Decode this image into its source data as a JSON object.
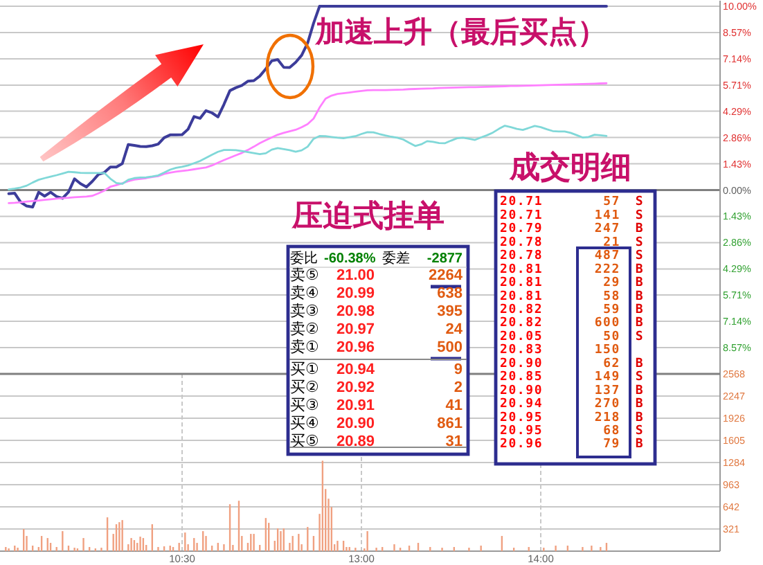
{
  "chart_data": [
    {
      "type": "line",
      "categories": [
        null,
        null,
        null,
        null,
        null,
        null,
        null,
        null,
        null,
        null,
        null,
        null,
        null,
        null,
        null,
        null,
        null,
        null,
        null,
        null,
        null,
        null,
        null,
        null,
        null,
        null,
        null,
        null,
        null,
        null,
        null,
        null,
        null,
        null,
        null,
        null,
        null,
        null,
        null,
        null,
        null,
        null,
        null,
        null,
        null,
        null,
        null,
        null,
        null,
        null,
        null,
        null,
        null,
        null,
        null,
        null,
        null,
        null,
        null,
        null,
        null,
        null,
        null,
        null,
        null,
        null,
        null,
        null,
        null,
        null,
        null,
        null,
        null,
        null,
        null,
        null,
        null,
        null,
        null,
        null,
        null,
        null,
        null,
        null,
        null,
        null,
        null,
        null,
        null,
        null,
        null,
        null,
        null,
        null,
        null,
        null,
        null,
        null,
        null,
        null,
        null,
        null,
        null,
        null,
        null,
        null,
        null,
        null,
        null,
        null,
        null,
        null,
        null,
        null,
        null,
        null,
        null,
        null,
        null,
        null,
        null
      ],
      "ylim": [
        -10,
        10
      ],
      "yticks": [
        {
          "value": 10,
          "label": "10.00%"
        },
        {
          "value": 8.57,
          "label": "8.57%"
        },
        {
          "value": 7.14,
          "label": "7.14%"
        },
        {
          "value": 5.71,
          "label": "5.71%"
        },
        {
          "value": 4.29,
          "label": "4.29%"
        },
        {
          "value": 2.86,
          "label": "2.86%"
        },
        {
          "value": 1.43,
          "label": "1.43%"
        },
        {
          "value": 0,
          "label": "0.00%"
        },
        {
          "value": -1.43,
          "label": "1.43%"
        },
        {
          "value": -2.86,
          "label": "2.86%"
        },
        {
          "value": -4.29,
          "label": "4.29%"
        },
        {
          "value": -5.71,
          "label": "5.71%"
        },
        {
          "value": -7.14,
          "label": "7.14%"
        },
        {
          "value": -8.57,
          "label": "8.57%"
        }
      ],
      "grid": "y",
      "annotations": [
        "加速上升（最后买点）",
        "压迫式挂单",
        "委比 -60.38% 委差 -2877",
        "卖⑤ 21.00 2264",
        "卖④ 20.99 638",
        "卖③ 20.98 395",
        "卖② 20.97 24",
        "卖① 20.96 500",
        "买① 20.94 9",
        "买② 20.92 2",
        "买③ 20.91 41",
        "买④ 20.90 861",
        "买⑤ 20.89 31",
        "成交明细",
        "20.71 57 S",
        "20.71 141 S",
        "20.79 247 B",
        "20.78 21 S",
        "20.78 487 S",
        "20.81 222 B",
        "20.81 29 B",
        "20.81 58 B",
        "20.82 59 B",
        "20.82 600 B",
        "20.05 50 S",
        "20.83 150",
        "20.90 62 B",
        "20.85 149 S",
        "20.90 137 B",
        "20.94 270 B",
        "20.95 218 B",
        "20.95 68 S",
        "20.96 79 B"
      ],
      "series": [
        {
          "color": "#3c3c9a",
          "values": [
            null,
            -0.2,
            -0.17,
            -0.66,
            -0.87,
            -0.92,
            -0.12,
            -0.33,
            -0.12,
            -0.35,
            -0.45,
            -0.11,
            0.61,
            0.35,
            0.17,
            0.48,
            0.85,
            0.96,
            1.25,
            1.25,
            1.44,
            2.48,
            2.43,
            2.37,
            2.36,
            2.41,
            2.5,
            2.85,
            3.0,
            3.0,
            3.01,
            3.31,
            4.0,
            3.9,
            4.32,
            4.2,
            3.98,
            4.66,
            5.41,
            5.57,
            5.69,
            5.92,
            5.95,
            6.2,
            6.59,
            7.03,
            7.1,
            6.68,
            6.67,
            6.95,
            7.33,
            8.0,
            9.08,
            10,
            10,
            10,
            10,
            10,
            10,
            10,
            10,
            10,
            10,
            10,
            10,
            10,
            10,
            10,
            10,
            10,
            10,
            10,
            10,
            10,
            10,
            10,
            10,
            10,
            10,
            10,
            10,
            10,
            10,
            10,
            10,
            10,
            10,
            10,
            10,
            10,
            10,
            10,
            10,
            10,
            10,
            10,
            10,
            10,
            10,
            10,
            10,
            10,
            null,
            null,
            null,
            null,
            null,
            null,
            null,
            null,
            null,
            null,
            null,
            null,
            null,
            null,
            null,
            null,
            null,
            null,
            null
          ]
        },
        {
          "color": "#ff80ff",
          "values": [
            null,
            -0.71,
            -0.69,
            -0.66,
            -0.63,
            -0.6,
            -0.57,
            -0.53,
            -0.5,
            -0.47,
            -0.44,
            -0.42,
            -0.39,
            -0.37,
            -0.35,
            -0.31,
            -0.18,
            -0.03,
            0.18,
            0.27,
            0.37,
            0.48,
            0.57,
            0.61,
            0.65,
            0.71,
            0.76,
            0.88,
            0.95,
            1.0,
            1.04,
            1.08,
            1.13,
            1.18,
            1.23,
            1.34,
            1.49,
            1.63,
            1.76,
            1.89,
            2.02,
            2.18,
            2.36,
            2.55,
            2.71,
            2.86,
            3.01,
            3.11,
            3.2,
            3.28,
            3.42,
            3.59,
            3.89,
            4.49,
            4.97,
            5.14,
            5.23,
            5.27,
            5.31,
            5.35,
            5.39,
            5.43,
            5.44,
            5.44,
            5.44,
            5.45,
            5.46,
            5.47,
            5.49,
            5.5,
            5.51,
            5.52,
            5.53,
            5.55,
            5.56,
            5.57,
            5.58,
            5.59,
            5.6,
            5.6,
            5.61,
            5.62,
            5.63,
            5.64,
            5.65,
            5.66,
            5.66,
            5.67,
            5.68,
            5.69,
            5.7,
            5.71,
            5.72,
            5.73,
            5.74,
            5.75,
            5.76,
            5.77,
            5.78,
            5.79,
            5.8,
            5.81,
            null,
            null,
            null,
            null,
            null,
            null,
            null,
            null,
            null,
            null,
            null,
            null,
            null,
            null,
            null,
            null,
            null,
            null,
            null
          ]
        },
        {
          "color": "#80d8d8",
          "values": [
            null,
            0.03,
            0.08,
            0.14,
            0.24,
            0.41,
            0.56,
            0.65,
            0.73,
            0.81,
            0.9,
            0.99,
            0.97,
            0.94,
            0.93,
            0.93,
            0.93,
            0.93,
            0.62,
            0.38,
            0.34,
            0.56,
            0.65,
            0.68,
            0.69,
            0.74,
            0.8,
            0.95,
            1.11,
            1.21,
            1.27,
            1.34,
            1.46,
            1.58,
            1.75,
            1.92,
            2.08,
            2.18,
            2.18,
            2.17,
            2.12,
            2.07,
            2.01,
            1.95,
            2.0,
            2.2,
            2.28,
            2.23,
            2.17,
            2.09,
            2.16,
            2.36,
            2.79,
            2.94,
            2.93,
            2.89,
            2.85,
            2.82,
            2.88,
            2.93,
            3.05,
            3.15,
            3.14,
            3.05,
            2.97,
            2.9,
            2.85,
            2.75,
            2.57,
            2.4,
            2.49,
            2.66,
            2.62,
            2.56,
            2.55,
            2.69,
            2.82,
            2.85,
            2.79,
            2.73,
            2.86,
            2.98,
            3.13,
            3.33,
            3.5,
            3.42,
            3.33,
            3.27,
            3.38,
            3.49,
            3.42,
            3.31,
            3.21,
            3.19,
            3.19,
            3.11,
            2.99,
            2.86,
            2.89,
            3.01,
            2.98,
            2.94,
            null,
            null,
            null,
            null,
            null,
            null,
            null,
            null,
            null,
            null,
            null,
            null,
            null,
            null,
            null,
            null,
            null,
            null,
            null
          ]
        }
      ]
    },
    {
      "type": "bar",
      "categories": [
        null,
        null,
        null,
        null,
        null,
        null,
        null,
        null,
        null,
        null,
        null,
        null,
        null,
        null,
        null,
        null,
        null,
        null,
        null,
        null,
        null,
        null,
        null,
        null,
        null,
        null,
        null,
        null,
        null,
        null,
        null,
        null,
        null,
        null,
        null,
        null,
        null,
        null,
        null,
        null,
        null,
        null,
        null,
        null,
        null,
        null,
        null,
        null,
        null,
        null,
        null,
        null,
        null,
        null,
        null,
        null,
        null,
        null,
        null,
        null,
        "10:30",
        null,
        null,
        null,
        null,
        null,
        null,
        null,
        null,
        null,
        null,
        null,
        null,
        null,
        null,
        null,
        null,
        null,
        null,
        null,
        null,
        null,
        null,
        null,
        null,
        null,
        null,
        null,
        null,
        null,
        null,
        null,
        null,
        null,
        null,
        null,
        null,
        null,
        null,
        null,
        null,
        null,
        null,
        null,
        null,
        null,
        null,
        null,
        null,
        null,
        null,
        null,
        null,
        null,
        null,
        null,
        null,
        null,
        null,
        null,
        "13:00",
        null,
        null,
        null,
        null,
        null,
        null,
        null,
        null,
        null,
        null,
        null,
        null,
        null,
        null,
        null,
        null,
        null,
        null,
        null,
        null,
        null,
        null,
        null,
        null,
        null,
        null,
        null,
        null,
        null,
        null,
        null,
        null,
        null,
        null,
        null,
        null,
        null,
        null,
        null,
        null,
        null,
        null,
        null,
        null,
        null,
        null,
        null,
        null,
        null,
        null,
        null,
        null,
        null,
        null,
        null,
        null,
        null,
        null,
        null,
        "14:00",
        null,
        null,
        null,
        null,
        null,
        null,
        null,
        null,
        null,
        null,
        null,
        null,
        null,
        null,
        null,
        null,
        null,
        null,
        null,
        null,
        null,
        null,
        null,
        null,
        null,
        null,
        null,
        null,
        null,
        null,
        null,
        null,
        null,
        null,
        null,
        null,
        null,
        null,
        null,
        null,
        null,
        null,
        null,
        null,
        null,
        null,
        null,
        null,
        null,
        null,
        null,
        null,
        null,
        null,
        null,
        null,
        null,
        null,
        null,
        null
      ],
      "ylim": [
        0,
        2568
      ],
      "yticks": [
        321,
        642,
        963,
        1284,
        1605,
        1926,
        2247,
        2568
      ],
      "grid": true,
      "color": "#f0a080",
      "values": [
        null,
        60,
        40,
        null,
        80,
        50,
        null,
        320,
        220,
        null,
        80,
        null,
        60,
        220,
        null,
        190,
        120,
        null,
        60,
        null,
        290,
        null,
        80,
        null,
        50,
        40,
        null,
        190,
        null,
        60,
        null,
        40,
        null,
        50,
        null,
        490,
        null,
        250,
        390,
        420,
        450,
        null,
        100,
        190,
        160,
        120,
        210,
        190,
        90,
        null,
        390,
        null,
        60,
        null,
        70,
        null,
        80,
        60,
        null,
        120,
        null,
        270,
        100,
        null,
        190,
        120,
        null,
        290,
        220,
        null,
        80,
        null,
        120,
        null,
        100,
        null,
        680,
        90,
        null,
        730,
        220,
        null,
        120,
        250,
        250,
        null,
        90,
        null,
        480,
        410,
        null,
        150,
        330,
        290,
        330,
        null,
        120,
        220,
        null,
        250,
        100,
        null,
        350,
        null,
        220,
        null,
        540,
        1310,
        900,
        760,
        640,
        100,
        150,
        null,
        150,
        60,
        60,
        null,
        50,
        null,
        null,
        40,
        290,
        null,
        null,
        50,
        null,
        60,
        null,
        null,
        null,
        100,
        null,
        50,
        null,
        null,
        80,
        null,
        null,
        120,
        null,
        null,
        null,
        60,
        null,
        null,
        null,
        50,
        null,
        null,
        null,
        60,
        null,
        null,
        null,
        null,
        50,
        null,
        null,
        null,
        80,
        null,
        null,
        null,
        null,
        null,
        null,
        220,
        null,
        null,
        null,
        50,
        null,
        null,
        null,
        null,
        60,
        null,
        null,
        null,
        null,
        50,
        null,
        null,
        null,
        80,
        null,
        null,
        null,
        80,
        null,
        null,
        null,
        null,
        60,
        null,
        null,
        80,
        null,
        null,
        60,
        null,
        120,
        null,
        null,
        null,
        null,
        null,
        null,
        null,
        null,
        null,
        null,
        null,
        null,
        null,
        null,
        null,
        null,
        null,
        null,
        null,
        null,
        null,
        null,
        null,
        null,
        null,
        null,
        null,
        null,
        null,
        null,
        null,
        null,
        null,
        null,
        null,
        null,
        null,
        null
      ]
    }
  ]
}
